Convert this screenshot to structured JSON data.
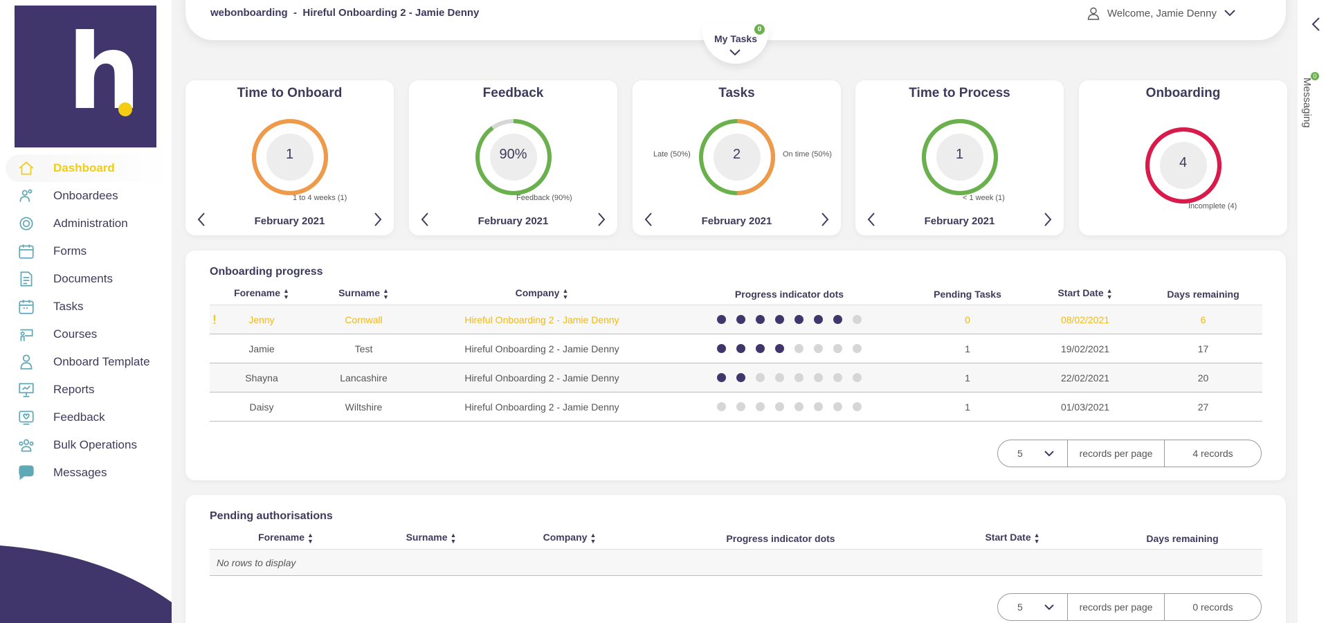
{
  "header": {
    "app": "webonboarding",
    "separator": "-",
    "company": "Hireful Onboarding 2 - Jamie Denny",
    "welcome": "Welcome, Jamie Denny",
    "my_tasks": "My Tasks",
    "my_tasks_count": "0"
  },
  "sidebar": {
    "logo_letter": "h",
    "items": [
      {
        "label": "Dashboard",
        "icon": "home-icon"
      },
      {
        "label": "Onboardees",
        "icon": "users-icon"
      },
      {
        "label": "Administration",
        "icon": "gear-icon"
      },
      {
        "label": "Forms",
        "icon": "calendar-form-icon"
      },
      {
        "label": "Documents",
        "icon": "document-icon"
      },
      {
        "label": "Tasks",
        "icon": "calendar-tasks-icon"
      },
      {
        "label": "Courses",
        "icon": "courses-icon"
      },
      {
        "label": "Onboard Template",
        "icon": "person-template-icon"
      },
      {
        "label": "Reports",
        "icon": "presentation-icon"
      },
      {
        "label": "Feedback",
        "icon": "feedback-icon"
      },
      {
        "label": "Bulk Operations",
        "icon": "group-icon"
      },
      {
        "label": "Messages",
        "icon": "chat-icon"
      }
    ]
  },
  "right_rail": {
    "messaging": "Messaging",
    "badge": "0"
  },
  "kpis": [
    {
      "title": "Time to Onboard",
      "value": "1",
      "month": "February 2021",
      "legend_right": "1 to 4 weeks (1)",
      "legend_left": "",
      "color": "#ef9a4a",
      "fraction": 1.0,
      "base_color": "#ef9a4a",
      "nav": true
    },
    {
      "title": "Feedback",
      "value": "90%",
      "month": "February 2021",
      "legend_right": "Feedback (90%)",
      "legend_left": "",
      "color": "#6ab04c",
      "fraction": 0.9,
      "base_color": "#d6d6d6",
      "nav": true
    },
    {
      "title": "Tasks",
      "value": "2",
      "month": "February 2021",
      "legend_right": "On time (50%)",
      "legend_left": "Late (50%)",
      "color": "#ef9a4a",
      "fraction": 0.5,
      "base_color": "#6ab04c",
      "nav": true
    },
    {
      "title": "Time to Process",
      "value": "1",
      "month": "February 2021",
      "legend_right": "< 1 week (1)",
      "legend_left": "",
      "color": "#6ab04c",
      "fraction": 1.0,
      "base_color": "#6ab04c",
      "nav": true
    },
    {
      "title": "Onboarding",
      "value": "4",
      "month": "",
      "legend_right": "Incomplete (4)",
      "legend_left": "",
      "color": "#d81b4a",
      "fraction": 1.0,
      "base_color": "#d81b4a",
      "nav": false
    }
  ],
  "progress": {
    "title": "Onboarding progress",
    "columns": [
      "Forename",
      "Surname",
      "Company",
      "Progress indicator dots",
      "Pending Tasks",
      "Start Date",
      "Days remaining"
    ],
    "rows": [
      {
        "forename": "Jenny",
        "surname": "Cornwall",
        "company": "Hireful Onboarding 2 - Jamie Denny",
        "progress_done": 7,
        "progress_total": 8,
        "pending": "0",
        "start": "08/02/2021",
        "days": "6",
        "flag": "!"
      },
      {
        "forename": "Jamie",
        "surname": "Test",
        "company": "Hireful Onboarding 2 - Jamie Denny",
        "progress_done": 4,
        "progress_total": 8,
        "pending": "1",
        "start": "19/02/2021",
        "days": "17",
        "flag": ""
      },
      {
        "forename": "Shayna",
        "surname": "Lancashire",
        "company": "Hireful Onboarding 2 - Jamie Denny",
        "progress_done": 2,
        "progress_total": 8,
        "pending": "1",
        "start": "22/02/2021",
        "days": "20",
        "flag": ""
      },
      {
        "forename": "Daisy",
        "surname": "Wiltshire",
        "company": "Hireful Onboarding 2 - Jamie Denny",
        "progress_done": 0,
        "progress_total": 8,
        "pending": "1",
        "start": "01/03/2021",
        "days": "27",
        "flag": ""
      }
    ],
    "pager": {
      "per_page": "5",
      "label": "records per page",
      "count": "4 records"
    }
  },
  "pending": {
    "title": "Pending authorisations",
    "columns": [
      "Forename",
      "Surname",
      "Company",
      "Progress indicator dots",
      "Start Date",
      "Days remaining"
    ],
    "empty": "No rows to display",
    "pager": {
      "per_page": "5",
      "label": "records per page",
      "count": "0 records"
    }
  }
}
